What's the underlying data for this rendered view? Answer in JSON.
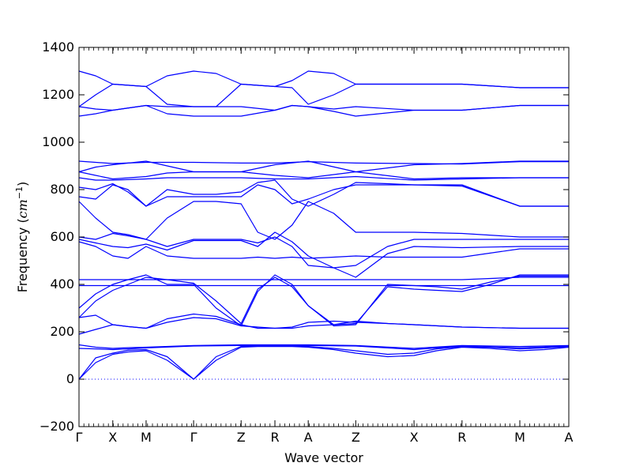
{
  "chart_data": {
    "type": "line",
    "title": "",
    "xlabel": "Wave vector",
    "ylabel_main": "Frequency (",
    "ylabel_unit_base": "cm",
    "ylabel_unit_exp": "−1",
    "ylabel_close": ")",
    "ylim": [
      -200,
      1400
    ],
    "yticks": [
      -200,
      0,
      200,
      400,
      600,
      800,
      1000,
      1200,
      1400
    ],
    "ytick_labels": [
      "−200",
      "0",
      "200",
      "400",
      "600",
      "800",
      "1000",
      "1200",
      "1400"
    ],
    "xticks": [
      0,
      0.069,
      0.137,
      0.234,
      0.331,
      0.4,
      0.468,
      0.565,
      0.684,
      0.782,
      0.9,
      1.0
    ],
    "xtick_labels": [
      "Γ",
      "X",
      "M",
      "Γ",
      "Z",
      "R",
      "A",
      "Z",
      "X",
      "R",
      "M",
      "A"
    ],
    "zero_line": {
      "style": "dotted",
      "color": "#0000ff"
    },
    "line_color": "#0000ff",
    "series": [
      {
        "x": [
          0,
          0.034,
          0.069,
          0.1,
          0.137,
          0.18,
          0.234,
          0.28,
          0.331,
          0.365,
          0.4,
          0.435,
          0.468,
          0.52,
          0.565,
          0.63,
          0.684,
          0.73,
          0.782,
          0.84,
          0.9,
          0.95,
          1.0
        ],
        "y": [
          0,
          70,
          105,
          115,
          120,
          80,
          0,
          80,
          135,
          138,
          138,
          138,
          135,
          125,
          110,
          95,
          100,
          120,
          135,
          130,
          120,
          125,
          135
        ]
      },
      {
        "x": [
          0,
          0.034,
          0.069,
          0.1,
          0.137,
          0.18,
          0.234,
          0.28,
          0.331,
          0.365,
          0.4,
          0.435,
          0.468,
          0.52,
          0.565,
          0.63,
          0.684,
          0.73,
          0.782,
          0.84,
          0.9,
          0.95,
          1.0
        ],
        "y": [
          0,
          90,
          110,
          122,
          125,
          95,
          0,
          95,
          138,
          140,
          140,
          140,
          138,
          130,
          120,
          105,
          110,
          128,
          138,
          135,
          128,
          132,
          138
        ]
      },
      {
        "x": [
          0,
          0.034,
          0.069,
          0.1,
          0.137,
          0.234,
          0.331,
          0.4,
          0.468,
          0.565,
          0.684,
          0.782,
          0.9,
          1.0
        ],
        "y": [
          130,
          128,
          125,
          128,
          132,
          140,
          142,
          142,
          142,
          140,
          125,
          140,
          132,
          140
        ]
      },
      {
        "x": [
          0,
          0.034,
          0.069,
          0.1,
          0.137,
          0.234,
          0.331,
          0.4,
          0.468,
          0.565,
          0.684,
          0.782,
          0.9,
          1.0
        ],
        "y": [
          145,
          135,
          130,
          133,
          135,
          142,
          145,
          145,
          145,
          142,
          130,
          142,
          138,
          142
        ]
      },
      {
        "x": [
          0,
          0.034,
          0.069,
          0.1,
          0.137,
          0.18,
          0.234,
          0.28,
          0.331,
          0.365,
          0.4,
          0.435,
          0.468,
          0.52,
          0.565,
          0.63,
          0.684,
          0.782,
          0.9,
          1.0
        ],
        "y": [
          190,
          210,
          230,
          222,
          215,
          240,
          260,
          255,
          225,
          220,
          215,
          220,
          240,
          245,
          240,
          235,
          230,
          220,
          215,
          215
        ]
      },
      {
        "x": [
          0,
          0.034,
          0.069,
          0.1,
          0.137,
          0.18,
          0.234,
          0.28,
          0.331,
          0.365,
          0.4,
          0.435,
          0.468,
          0.52,
          0.565,
          0.63,
          0.684,
          0.782,
          0.9,
          1.0
        ],
        "y": [
          260,
          270,
          230,
          222,
          215,
          255,
          275,
          265,
          230,
          215,
          215,
          215,
          225,
          230,
          245,
          235,
          230,
          220,
          215,
          215
        ]
      },
      {
        "x": [
          0,
          0.034,
          0.069,
          0.137,
          0.234,
          0.331,
          0.4,
          0.468,
          0.565,
          0.684,
          0.782,
          0.9,
          1.0
        ],
        "y": [
          395,
          395,
          395,
          395,
          395,
          395,
          395,
          395,
          395,
          395,
          395,
          395,
          395
        ]
      },
      {
        "x": [
          0,
          0.034,
          0.069,
          0.137,
          0.234,
          0.331,
          0.4,
          0.468,
          0.565,
          0.684,
          0.782,
          0.9,
          1.0
        ],
        "y": [
          420,
          420,
          420,
          420,
          420,
          420,
          420,
          420,
          420,
          420,
          420,
          430,
          430
        ]
      },
      {
        "x": [
          0,
          0.034,
          0.069,
          0.1,
          0.137,
          0.18,
          0.234,
          0.28,
          0.331,
          0.365,
          0.4,
          0.435,
          0.468,
          0.52,
          0.565,
          0.63,
          0.684,
          0.73,
          0.782,
          0.84,
          0.9,
          1.0
        ],
        "y": [
          260,
          330,
          375,
          400,
          430,
          420,
          405,
          330,
          235,
          380,
          430,
          390,
          310,
          230,
          235,
          390,
          380,
          375,
          370,
          400,
          440,
          440
        ]
      },
      {
        "x": [
          0,
          0.034,
          0.069,
          0.1,
          0.137,
          0.18,
          0.234,
          0.28,
          0.331,
          0.365,
          0.4,
          0.435,
          0.468,
          0.52,
          0.565,
          0.63,
          0.684,
          0.73,
          0.782,
          0.84,
          0.9,
          1.0
        ],
        "y": [
          300,
          360,
          400,
          420,
          440,
          400,
          400,
          300,
          225,
          370,
          440,
          400,
          310,
          225,
          230,
          400,
          395,
          390,
          380,
          410,
          435,
          435
        ]
      },
      {
        "x": [
          0,
          0.034,
          0.069,
          0.1,
          0.137,
          0.18,
          0.234,
          0.28,
          0.331,
          0.365,
          0.4,
          0.435,
          0.468,
          0.52,
          0.565,
          0.63,
          0.684,
          0.782,
          0.9,
          1.0
        ],
        "y": [
          580,
          560,
          520,
          510,
          560,
          520,
          510,
          510,
          510,
          515,
          510,
          515,
          510,
          515,
          520,
          515,
          515,
          515,
          550,
          550
        ]
      },
      {
        "x": [
          0,
          0.034,
          0.069,
          0.1,
          0.137,
          0.18,
          0.234,
          0.28,
          0.331,
          0.365,
          0.4,
          0.435,
          0.468,
          0.52,
          0.565,
          0.63,
          0.684,
          0.782,
          0.9,
          1.0
        ],
        "y": [
          590,
          575,
          560,
          555,
          570,
          545,
          585,
          585,
          585,
          560,
          620,
          580,
          520,
          470,
          430,
          530,
          560,
          555,
          560,
          560
        ]
      },
      {
        "x": [
          0,
          0.034,
          0.069,
          0.1,
          0.137,
          0.18,
          0.234,
          0.28,
          0.331,
          0.365,
          0.4,
          0.435,
          0.468,
          0.52,
          0.565,
          0.63,
          0.684,
          0.782,
          0.9,
          1.0
        ],
        "y": [
          600,
          590,
          615,
          605,
          590,
          560,
          590,
          590,
          590,
          575,
          600,
          560,
          480,
          470,
          480,
          560,
          590,
          590,
          590,
          590
        ]
      },
      {
        "x": [
          0,
          0.034,
          0.069,
          0.1,
          0.137,
          0.18,
          0.234,
          0.28,
          0.331,
          0.365,
          0.4,
          0.435,
          0.468,
          0.52,
          0.565,
          0.63,
          0.684,
          0.782,
          0.9,
          1.0
        ],
        "y": [
          750,
          680,
          620,
          610,
          590,
          680,
          750,
          750,
          740,
          620,
          590,
          650,
          750,
          700,
          620,
          620,
          620,
          615,
          600,
          600
        ]
      },
      {
        "x": [
          0,
          0.034,
          0.069,
          0.1,
          0.137,
          0.18,
          0.234,
          0.28,
          0.331,
          0.365,
          0.4,
          0.435,
          0.468,
          0.52,
          0.565,
          0.63,
          0.684,
          0.782,
          0.9,
          1.0
        ],
        "y": [
          770,
          760,
          820,
          800,
          730,
          770,
          770,
          770,
          770,
          820,
          800,
          740,
          760,
          800,
          820,
          820,
          820,
          820,
          730,
          730
        ]
      },
      {
        "x": [
          0,
          0.034,
          0.069,
          0.1,
          0.137,
          0.18,
          0.234,
          0.28,
          0.331,
          0.365,
          0.4,
          0.435,
          0.468,
          0.52,
          0.565,
          0.63,
          0.684,
          0.782,
          0.9,
          1.0
        ],
        "y": [
          810,
          800,
          825,
          790,
          730,
          800,
          780,
          780,
          790,
          830,
          840,
          760,
          730,
          780,
          830,
          825,
          820,
          815,
          730,
          730
        ]
      },
      {
        "x": [
          0,
          0.034,
          0.069,
          0.137,
          0.18,
          0.234,
          0.331,
          0.4,
          0.468,
          0.565,
          0.684,
          0.782,
          0.9,
          1.0
        ],
        "y": [
          850,
          840,
          840,
          845,
          850,
          850,
          850,
          845,
          845,
          855,
          840,
          845,
          850,
          850
        ]
      },
      {
        "x": [
          0,
          0.034,
          0.069,
          0.137,
          0.18,
          0.234,
          0.331,
          0.4,
          0.468,
          0.565,
          0.684,
          0.782,
          0.9,
          1.0
        ],
        "y": [
          875,
          860,
          845,
          855,
          870,
          875,
          875,
          860,
          850,
          875,
          845,
          850,
          850,
          850
        ]
      },
      {
        "x": [
          0,
          0.034,
          0.069,
          0.137,
          0.234,
          0.331,
          0.4,
          0.468,
          0.565,
          0.684,
          0.782,
          0.9,
          1.0
        ],
        "y": [
          875,
          895,
          905,
          920,
          875,
          875,
          905,
          920,
          875,
          905,
          910,
          920,
          920
        ]
      },
      {
        "x": [
          0,
          0.034,
          0.069,
          0.137,
          0.234,
          0.331,
          0.4,
          0.468,
          0.565,
          0.684,
          0.782,
          0.9,
          1.0
        ],
        "y": [
          920,
          915,
          910,
          915,
          915,
          912,
          912,
          918,
          912,
          910,
          908,
          918,
          918
        ]
      },
      {
        "x": [
          0,
          0.034,
          0.069,
          0.137,
          0.18,
          0.234,
          0.28,
          0.331,
          0.4,
          0.435,
          0.468,
          0.52,
          0.565,
          0.684,
          0.782,
          0.9,
          1.0
        ],
        "y": [
          1110,
          1120,
          1135,
          1155,
          1120,
          1110,
          1110,
          1110,
          1135,
          1155,
          1150,
          1130,
          1110,
          1135,
          1135,
          1155,
          1155
        ]
      },
      {
        "x": [
          0,
          0.034,
          0.069,
          0.137,
          0.18,
          0.234,
          0.28,
          0.331,
          0.4,
          0.435,
          0.468,
          0.52,
          0.565,
          0.684,
          0.782,
          0.9,
          1.0
        ],
        "y": [
          1150,
          1140,
          1135,
          1155,
          1150,
          1150,
          1150,
          1150,
          1135,
          1155,
          1150,
          1140,
          1150,
          1135,
          1135,
          1155,
          1155
        ]
      },
      {
        "x": [
          0,
          0.034,
          0.069,
          0.137,
          0.18,
          0.234,
          0.28,
          0.331,
          0.4,
          0.435,
          0.468,
          0.52,
          0.565,
          0.684,
          0.782,
          0.9,
          1.0
        ],
        "y": [
          1150,
          1200,
          1245,
          1235,
          1280,
          1300,
          1290,
          1245,
          1235,
          1230,
          1160,
          1200,
          1245,
          1245,
          1245,
          1230,
          1230
        ]
      },
      {
        "x": [
          0,
          0.034,
          0.069,
          0.137,
          0.18,
          0.234,
          0.28,
          0.331,
          0.4,
          0.435,
          0.468,
          0.52,
          0.565,
          0.684,
          0.782,
          0.9,
          1.0
        ],
        "y": [
          1300,
          1280,
          1245,
          1235,
          1160,
          1150,
          1150,
          1245,
          1235,
          1260,
          1300,
          1290,
          1245,
          1245,
          1245,
          1230,
          1230
        ]
      }
    ]
  }
}
